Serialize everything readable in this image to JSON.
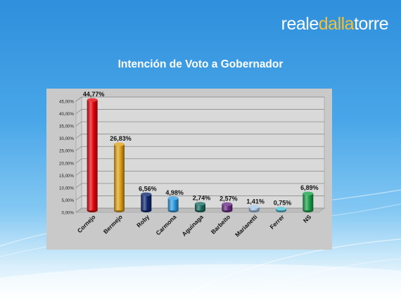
{
  "brand": {
    "part1": "reale",
    "part2": "dalla",
    "part3": "torre"
  },
  "slide_title": "Intención de Voto a Gobernador",
  "colors": {
    "chart_background": "#c9c9c9",
    "plot_area": "#d9d9d9",
    "grid": "#8c8c8c"
  },
  "chart_data": {
    "type": "bar",
    "title": "",
    "xlabel": "",
    "ylabel": "",
    "ylim": [
      0,
      45
    ],
    "y_ticks": [
      "0,00%",
      "5,00%",
      "10,00%",
      "15,00%",
      "20,00%",
      "25,00%",
      "30,00%",
      "35,00%",
      "40,00%",
      "45,00%"
    ],
    "categories": [
      "Cornejo",
      "Bermejo",
      "Roby",
      "Carmona",
      "Aguinaga",
      "Barbeito",
      "Marianetti",
      "Ferrer",
      "NS"
    ],
    "values": [
      44.77,
      26.83,
      6.56,
      4.98,
      2.74,
      2.57,
      1.41,
      0.75,
      6.89
    ],
    "value_labels": [
      "44,77%",
      "26,83%",
      "6,56%",
      "4,98%",
      "2,74%",
      "2,57%",
      "1,41%",
      "0,75%",
      "6,89%"
    ],
    "bar_colors": [
      "#e4060c",
      "#e0a21a",
      "#0f2a72",
      "#2e9de2",
      "#1d6e63",
      "#6a2c86",
      "#a5c4e6",
      "#4ec3d8",
      "#1aa34a"
    ],
    "grid": true,
    "legend": "none"
  }
}
